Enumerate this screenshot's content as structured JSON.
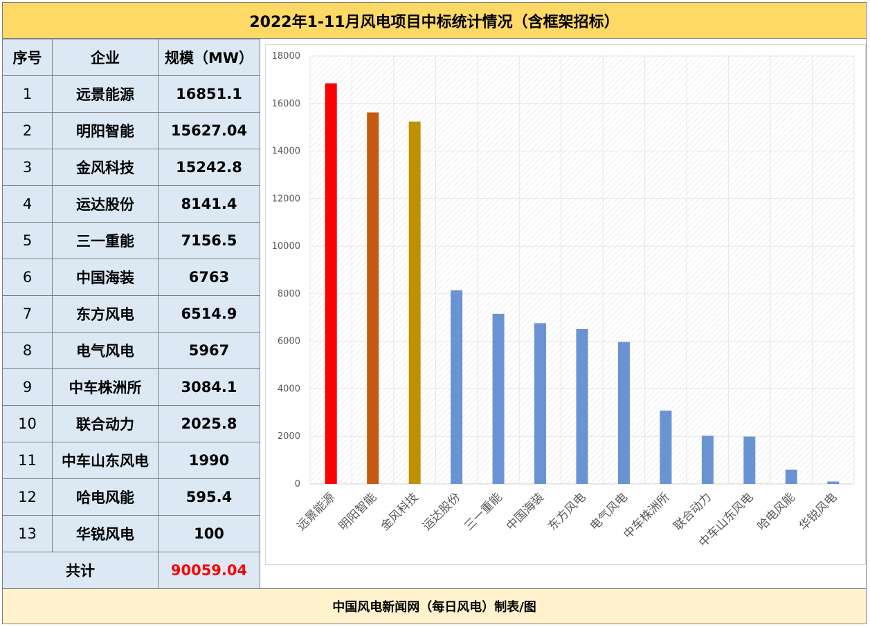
{
  "title": "2022年1-11月风电项目中标统计情况（含框架招标）",
  "footer": "中国风电新闻网（每日风电）制表/图",
  "table": {
    "headers": [
      "序号",
      "企业",
      "规模（MW）"
    ],
    "rows": [
      {
        "idx": "1",
        "company": "远景能源",
        "value": "16851.1"
      },
      {
        "idx": "2",
        "company": "明阳智能",
        "value": "15627.04"
      },
      {
        "idx": "3",
        "company": "金风科技",
        "value": "15242.8"
      },
      {
        "idx": "4",
        "company": "运达股份",
        "value": "8141.4"
      },
      {
        "idx": "5",
        "company": "三一重能",
        "value": "7156.5"
      },
      {
        "idx": "6",
        "company": "中国海装",
        "value": "6763"
      },
      {
        "idx": "7",
        "company": "东方风电",
        "value": "6514.9"
      },
      {
        "idx": "8",
        "company": "电气风电",
        "value": "5967"
      },
      {
        "idx": "9",
        "company": "中车株洲所",
        "value": "3084.1"
      },
      {
        "idx": "10",
        "company": "联合动力",
        "value": "2025.8"
      },
      {
        "idx": "11",
        "company": "中车山东风电",
        "value": "1990"
      },
      {
        "idx": "12",
        "company": "哈电风能",
        "value": "595.4"
      },
      {
        "idx": "13",
        "company": "华锐风电",
        "value": "100"
      }
    ],
    "total_label": "共计",
    "total_value": "90059.04"
  },
  "colors": {
    "title_bg": "#ffd966",
    "footer_bg": "#fff2cc",
    "table_bg": "#dce9f5",
    "total_value": "#ff0000",
    "default_bar": "#6a93d4"
  },
  "chart_data": {
    "type": "bar",
    "categories": [
      "远景能源",
      "明阳智能",
      "金风科技",
      "运达股份",
      "三一重能",
      "中国海装",
      "东方风电",
      "电气风电",
      "中车株洲所",
      "联合动力",
      "中车山东风电",
      "哈电风能",
      "华锐风电"
    ],
    "values": [
      16851.1,
      15627.04,
      15242.8,
      8141.4,
      7156.5,
      6763,
      6514.9,
      5967,
      3084.1,
      2025.8,
      1990,
      595.4,
      100
    ],
    "bar_colors": [
      "#ff0000",
      "#c55a11",
      "#bf9000",
      "#6a93d4",
      "#6a93d4",
      "#6a93d4",
      "#6a93d4",
      "#6a93d4",
      "#6a93d4",
      "#6a93d4",
      "#6a93d4",
      "#6a93d4",
      "#6a93d4"
    ],
    "ylim": [
      0,
      18000
    ],
    "yticks": [
      0,
      2000,
      4000,
      6000,
      8000,
      10000,
      12000,
      14000,
      16000,
      18000
    ],
    "xlabel": "",
    "ylabel": "",
    "grid": true,
    "legend": "none"
  }
}
